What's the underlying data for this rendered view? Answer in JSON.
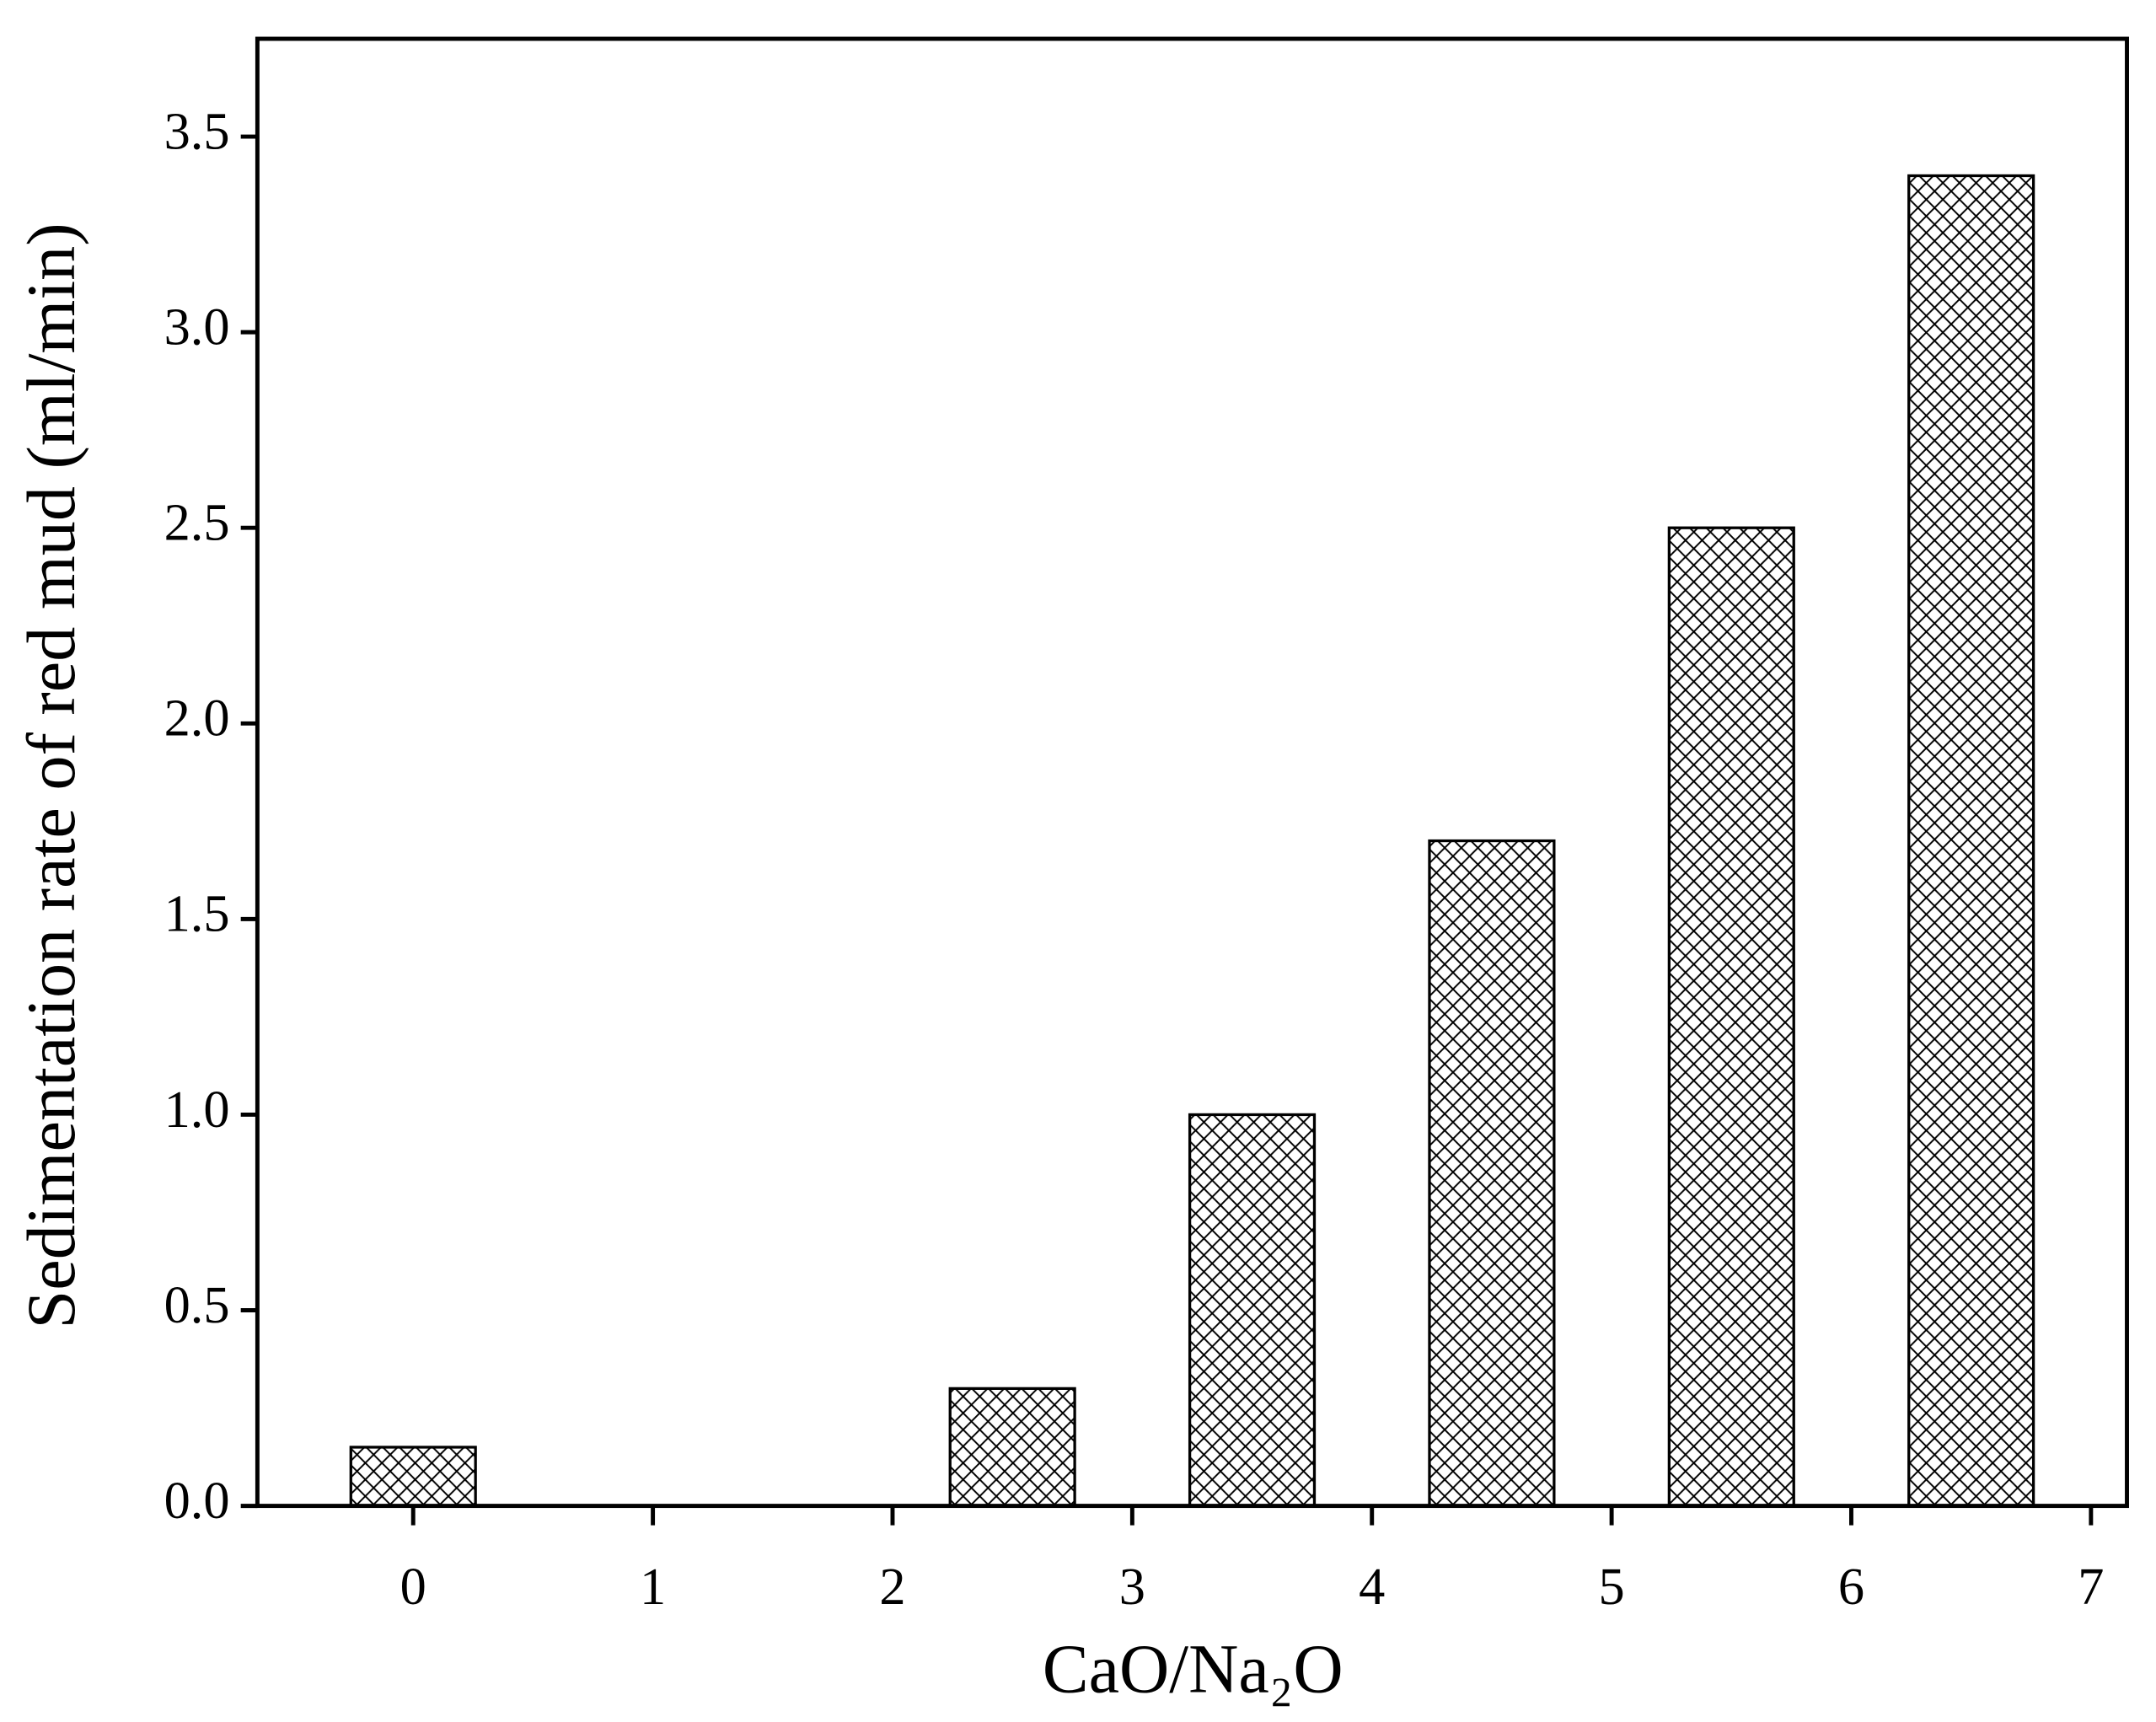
{
  "chart_data": {
    "type": "bar",
    "xlabel": "CaO/Na₂O",
    "ylabel": "Sedimentation rate of red mud (ml/min)",
    "x": [
      0,
      2.5,
      3.5,
      4.5,
      5.5,
      6.5
    ],
    "values": [
      0.15,
      0.3,
      1.0,
      1.7,
      2.5,
      3.4
    ],
    "color": "#000000",
    "xlim": [
      -0.65,
      7.15
    ],
    "xticks": [
      0,
      1,
      2,
      3,
      4,
      5,
      6,
      7
    ],
    "ylim": [
      0,
      3.75
    ],
    "yticks": [
      {
        "value": 0,
        "label": "0.0"
      },
      0.5,
      {
        "value": 1,
        "label": "1.0"
      },
      1.5,
      {
        "value": 2,
        "label": "2.0"
      },
      2.5,
      {
        "value": 3,
        "label": "3.0"
      },
      3.5
    ],
    "grid": false
  }
}
